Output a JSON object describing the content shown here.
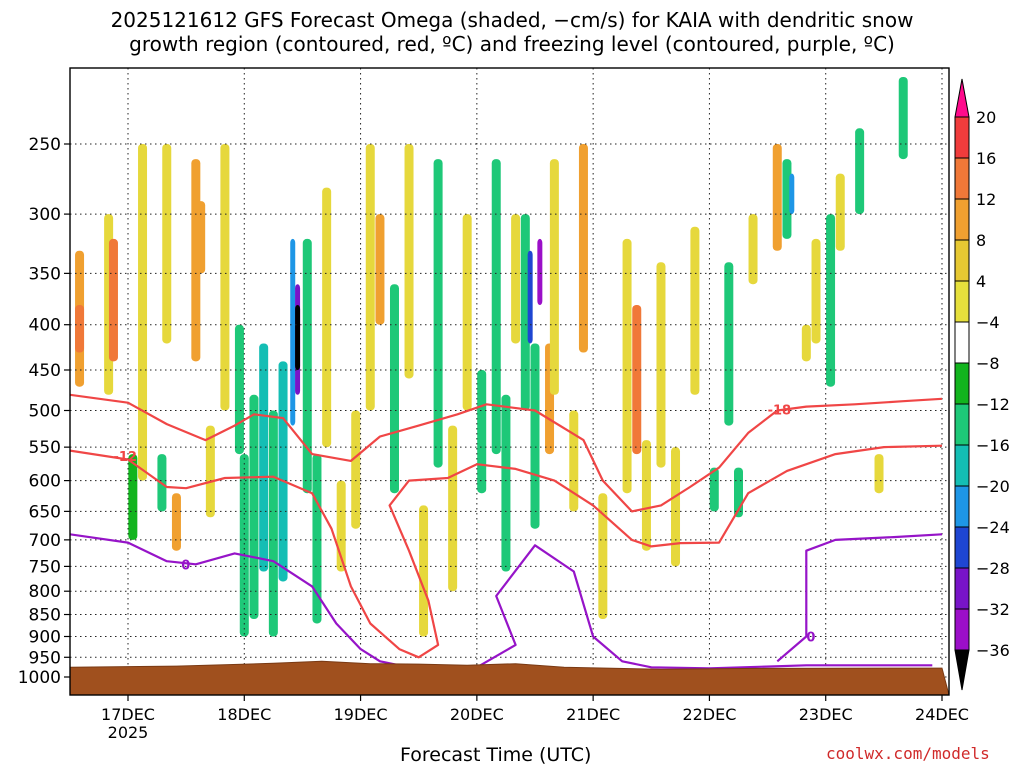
{
  "chart": {
    "title_line1": "2025121612 GFS Forecast Omega (shaded, −cm/s) for KAIA with dendritic snow",
    "title_line2": "growth region (contoured, red, ºC) and freezing level (contoured, purple, ºC)",
    "xlabel": "Forecast Time (UTC)",
    "credit": "coolwx.com/models",
    "year_label": "2025"
  },
  "chart_data": {
    "type": "heatmap",
    "title": "2025121612 GFS Forecast Omega (shaded, −cm/s) for KAIA with dendritic snow growth region (contoured, red, ºC) and freezing level (contoured, purple, ºC)",
    "xlabel": "Forecast Time (UTC)",
    "ylabel": "",
    "x_ticks": [
      "17DEC",
      "18DEC",
      "19DEC",
      "20DEC",
      "21DEC",
      "22DEC",
      "23DEC",
      "24DEC"
    ],
    "x_tick_hours": [
      0,
      24,
      48,
      72,
      96,
      120,
      144,
      168
    ],
    "xlim_hours": [
      -12.5,
      168
    ],
    "y_ticks": [
      250,
      300,
      350,
      400,
      450,
      500,
      550,
      600,
      650,
      700,
      750,
      800,
      850,
      900,
      950,
      1000
    ],
    "ylim_hpa": [
      200,
      1025
    ],
    "y_scale": "log-pressure (inverted)",
    "grid": "dotted",
    "colorbar": {
      "labels": [
        "20",
        "16",
        "12",
        "8",
        "4",
        "−4",
        "−8",
        "−12",
        "−16",
        "−20",
        "−24",
        "−28",
        "−32",
        "−36"
      ],
      "colors": [
        "#ff0a8c",
        "#f03c3c",
        "#f07838",
        "#f0a030",
        "#e6c832",
        "#e6e03c",
        "#ffffff",
        "#12b41e",
        "#1ec878",
        "#14beb4",
        "#1e96e6",
        "#1e46d2",
        "#7814c8",
        "#9b0fc8",
        "#a0a0a0",
        "#000000"
      ]
    },
    "omega_cells": [
      {
        "t": -10,
        "p0": 470,
        "p1": 330,
        "v": 8
      },
      {
        "t": -10,
        "p0": 430,
        "p1": 380,
        "v": 14
      },
      {
        "t": -4,
        "p0": 480,
        "p1": 300,
        "v": 6
      },
      {
        "t": -3,
        "p0": 440,
        "p1": 320,
        "v": 12
      },
      {
        "t": 1,
        "p0": 700,
        "p1": 560,
        "v": -6
      },
      {
        "t": 3,
        "p0": 600,
        "p1": 250,
        "v": 6
      },
      {
        "t": 7,
        "p0": 650,
        "p1": 560,
        "v": -8
      },
      {
        "t": 8,
        "p0": 420,
        "p1": 250,
        "v": 6
      },
      {
        "t": 10,
        "p0": 720,
        "p1": 620,
        "v": 8
      },
      {
        "t": 14,
        "p0": 440,
        "p1": 260,
        "v": 8
      },
      {
        "t": 15,
        "p0": 350,
        "p1": 290,
        "v": 10
      },
      {
        "t": 17,
        "p0": 660,
        "p1": 520,
        "v": 6
      },
      {
        "t": 20,
        "p0": 500,
        "p1": 250,
        "v": 6
      },
      {
        "t": 23,
        "p0": 560,
        "p1": 400,
        "v": -8
      },
      {
        "t": 24,
        "p0": 900,
        "p1": 560,
        "v": -8
      },
      {
        "t": 26,
        "p0": 860,
        "p1": 480,
        "v": -10
      },
      {
        "t": 28,
        "p0": 760,
        "p1": 420,
        "v": -12
      },
      {
        "t": 30,
        "p0": 900,
        "p1": 500,
        "v": -10
      },
      {
        "t": 32,
        "p0": 780,
        "p1": 440,
        "v": -14
      },
      {
        "t": 34,
        "p0": 520,
        "p1": 320,
        "v": -18
      },
      {
        "t": 35,
        "p0": 480,
        "p1": 360,
        "v": -26
      },
      {
        "t": 35,
        "p0": 450,
        "p1": 380,
        "v": -36
      },
      {
        "t": 37,
        "p0": 620,
        "p1": 320,
        "v": -10
      },
      {
        "t": 39,
        "p0": 870,
        "p1": 560,
        "v": -8
      },
      {
        "t": 41,
        "p0": 550,
        "p1": 280,
        "v": 6
      },
      {
        "t": 44,
        "p0": 760,
        "p1": 600,
        "v": 6
      },
      {
        "t": 47,
        "p0": 680,
        "p1": 500,
        "v": 6
      },
      {
        "t": 50,
        "p0": 500,
        "p1": 250,
        "v": 6
      },
      {
        "t": 52,
        "p0": 400,
        "p1": 300,
        "v": 10
      },
      {
        "t": 55,
        "p0": 620,
        "p1": 360,
        "v": -8
      },
      {
        "t": 58,
        "p0": 460,
        "p1": 250,
        "v": 6
      },
      {
        "t": 61,
        "p0": 900,
        "p1": 640,
        "v": 6
      },
      {
        "t": 64,
        "p0": 580,
        "p1": 260,
        "v": -8
      },
      {
        "t": 67,
        "p0": 800,
        "p1": 520,
        "v": 6
      },
      {
        "t": 70,
        "p0": 500,
        "p1": 300,
        "v": 6
      },
      {
        "t": 73,
        "p0": 620,
        "p1": 450,
        "v": -8
      },
      {
        "t": 76,
        "p0": 560,
        "p1": 260,
        "v": -8
      },
      {
        "t": 78,
        "p0": 760,
        "p1": 480,
        "v": -10
      },
      {
        "t": 80,
        "p0": 420,
        "p1": 300,
        "v": 6
      },
      {
        "t": 82,
        "p0": 500,
        "p1": 300,
        "v": -10
      },
      {
        "t": 83,
        "p0": 420,
        "p1": 330,
        "v": -20
      },
      {
        "t": 84,
        "p0": 680,
        "p1": 420,
        "v": -10
      },
      {
        "t": 85,
        "p0": 380,
        "p1": 320,
        "v": -28
      },
      {
        "t": 87,
        "p0": 560,
        "p1": 420,
        "v": 10
      },
      {
        "t": 88,
        "p0": 480,
        "p1": 260,
        "v": 6
      },
      {
        "t": 92,
        "p0": 650,
        "p1": 500,
        "v": 6
      },
      {
        "t": 94,
        "p0": 430,
        "p1": 250,
        "v": 8
      },
      {
        "t": 98,
        "p0": 860,
        "p1": 620,
        "v": 6
      },
      {
        "t": 103,
        "p0": 620,
        "p1": 320,
        "v": 6
      },
      {
        "t": 105,
        "p0": 560,
        "p1": 380,
        "v": 14
      },
      {
        "t": 107,
        "p0": 720,
        "p1": 540,
        "v": 6
      },
      {
        "t": 110,
        "p0": 580,
        "p1": 340,
        "v": 6
      },
      {
        "t": 113,
        "p0": 750,
        "p1": 550,
        "v": 6
      },
      {
        "t": 117,
        "p0": 480,
        "p1": 310,
        "v": 6
      },
      {
        "t": 121,
        "p0": 650,
        "p1": 580,
        "v": -8
      },
      {
        "t": 124,
        "p0": 520,
        "p1": 340,
        "v": -8
      },
      {
        "t": 126,
        "p0": 660,
        "p1": 580,
        "v": -8
      },
      {
        "t": 129,
        "p0": 360,
        "p1": 300,
        "v": 6
      },
      {
        "t": 134,
        "p0": 330,
        "p1": 250,
        "v": 10
      },
      {
        "t": 136,
        "p0": 320,
        "p1": 260,
        "v": -10
      },
      {
        "t": 137,
        "p0": 300,
        "p1": 270,
        "v": -16
      },
      {
        "t": 140,
        "p0": 440,
        "p1": 400,
        "v": 6
      },
      {
        "t": 142,
        "p0": 420,
        "p1": 320,
        "v": 6
      },
      {
        "t": 145,
        "p0": 470,
        "p1": 300,
        "v": -8
      },
      {
        "t": 147,
        "p0": 330,
        "p1": 270,
        "v": 6
      },
      {
        "t": 151,
        "p0": 300,
        "p1": 240,
        "v": -8
      },
      {
        "t": 155,
        "p0": 620,
        "p1": 560,
        "v": 6
      },
      {
        "t": 160,
        "p0": 260,
        "p1": 210,
        "v": -8
      }
    ],
    "red_contours": [
      {
        "label": "-18",
        "label_t": 132,
        "label_p": 505,
        "points": [
          [
            -12,
            480
          ],
          [
            0,
            490
          ],
          [
            8,
            518
          ],
          [
            16,
            540
          ],
          [
            22,
            520
          ],
          [
            26,
            505
          ],
          [
            32,
            510
          ],
          [
            38,
            560
          ],
          [
            46,
            570
          ],
          [
            52,
            535
          ],
          [
            60,
            520
          ],
          [
            68,
            505
          ],
          [
            74,
            492
          ],
          [
            84,
            500
          ],
          [
            94,
            540
          ],
          [
            98,
            600
          ],
          [
            104,
            650
          ],
          [
            110,
            640
          ],
          [
            116,
            610
          ],
          [
            122,
            580
          ],
          [
            128,
            530
          ],
          [
            134,
            500
          ],
          [
            140,
            495
          ],
          [
            150,
            492
          ],
          [
            160,
            488
          ],
          [
            168,
            485
          ]
        ]
      },
      {
        "label": "-12",
        "label_t": -3,
        "label_p": 570,
        "points": [
          [
            -12,
            555
          ],
          [
            0,
            568
          ],
          [
            8,
            610
          ],
          [
            12,
            612
          ],
          [
            20,
            596
          ],
          [
            30,
            594
          ],
          [
            38,
            620
          ],
          [
            42,
            680
          ],
          [
            46,
            790
          ],
          [
            50,
            870
          ],
          [
            56,
            930
          ],
          [
            60,
            950
          ],
          [
            64,
            920
          ],
          [
            62,
            820
          ],
          [
            58,
            720
          ],
          [
            54,
            640
          ],
          [
            58,
            600
          ],
          [
            66,
            596
          ],
          [
            72,
            575
          ],
          [
            80,
            582
          ],
          [
            88,
            600
          ],
          [
            96,
            640
          ],
          [
            104,
            700
          ],
          [
            108,
            712
          ],
          [
            114,
            706
          ],
          [
            122,
            705
          ],
          [
            128,
            620
          ],
          [
            136,
            585
          ],
          [
            146,
            560
          ],
          [
            156,
            550
          ],
          [
            168,
            548
          ]
        ]
      }
    ],
    "purple_contours": [
      {
        "label": "0",
        "label_t": 11,
        "points": [
          [
            -12,
            690
          ],
          [
            0,
            705
          ],
          [
            8,
            740
          ],
          [
            14,
            746
          ],
          [
            22,
            725
          ],
          [
            30,
            740
          ],
          [
            38,
            790
          ],
          [
            43,
            870
          ],
          [
            48,
            930
          ],
          [
            52,
            960
          ],
          [
            58,
            975
          ],
          [
            72,
            975
          ],
          [
            80,
            920
          ],
          [
            76,
            810
          ],
          [
            84,
            710
          ],
          [
            92,
            760
          ],
          [
            96,
            900
          ],
          [
            102,
            960
          ],
          [
            108,
            975
          ],
          [
            120,
            978
          ],
          [
            140,
            970
          ],
          [
            166,
            970
          ]
        ]
      },
      {
        "label": "0",
        "label_t": 140,
        "points": [
          [
            134,
            960
          ],
          [
            140,
            900
          ],
          [
            140,
            720
          ],
          [
            146,
            700
          ],
          [
            158,
            695
          ],
          [
            168,
            690
          ]
        ]
      }
    ]
  }
}
